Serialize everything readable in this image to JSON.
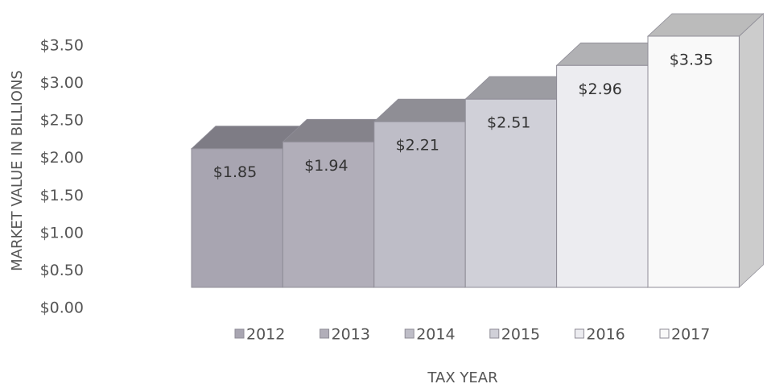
{
  "chart_data": {
    "type": "bar3d",
    "x_label": "TAX YEAR",
    "y_label": "MARKET VALUE IN BILLIONS",
    "categories": [
      "2012",
      "2013",
      "2014",
      "2015",
      "2016",
      "2017"
    ],
    "values": [
      1.85,
      1.94,
      2.21,
      2.51,
      2.96,
      3.35
    ],
    "value_labels": [
      "$1.85",
      "$1.94",
      "$2.21",
      "$2.51",
      "$2.96",
      "$3.35"
    ],
    "colors": [
      "#a8a5b1",
      "#b1aeb9",
      "#bebdc7",
      "#d0d0d8",
      "#ececf0",
      "#f9f9f9"
    ],
    "ylim": [
      0,
      3.5
    ],
    "yticks": [
      {
        "value": 0,
        "label": "$0.00"
      },
      {
        "value": 0.5,
        "label": "$0.50"
      },
      {
        "value": 1,
        "label": "$1.00"
      },
      {
        "value": 1.5,
        "label": "$1.50"
      },
      {
        "value": 2,
        "label": "$2.00"
      },
      {
        "value": 2.5,
        "label": "$2.50"
      },
      {
        "value": 3,
        "label": "$3.00"
      },
      {
        "value": 3.5,
        "label": "$3.50"
      }
    ],
    "legend": "bottom"
  }
}
